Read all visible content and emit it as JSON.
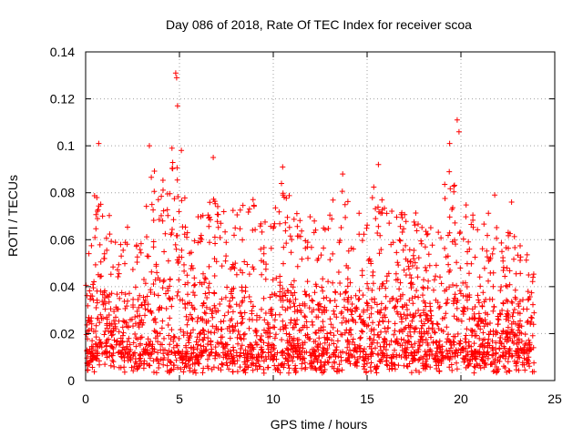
{
  "chart_data": {
    "type": "scatter",
    "title": "Day 086 of 2018, Rate Of TEC Index for receiver scoa",
    "xlabel": "GPS time / hours",
    "ylabel": "ROTI / TECUs",
    "xlim": [
      0,
      25
    ],
    "ylim": [
      0,
      0.14
    ],
    "x_ticks": [
      0,
      5,
      10,
      15,
      20,
      25
    ],
    "x_tick_labels": [
      "0",
      "5",
      "10",
      "15",
      "20",
      "25"
    ],
    "y_ticks": [
      0,
      0.02,
      0.04,
      0.06,
      0.08,
      0.1,
      0.12,
      0.14
    ],
    "y_tick_labels": [
      "0",
      "0.02",
      "0.04",
      "0.06",
      "0.08",
      "0.1",
      "0.12",
      "0.14"
    ],
    "grid": true,
    "marker": "+",
    "marker_color": "#ff0000",
    "x_data_range": [
      0,
      23.9
    ],
    "peak_points": [
      {
        "x": 0.7,
        "y": 0.101
      },
      {
        "x": 3.4,
        "y": 0.1
      },
      {
        "x": 4.6,
        "y": 0.099
      },
      {
        "x": 4.8,
        "y": 0.131
      },
      {
        "x": 4.85,
        "y": 0.129
      },
      {
        "x": 4.9,
        "y": 0.117
      },
      {
        "x": 5.1,
        "y": 0.098
      },
      {
        "x": 6.8,
        "y": 0.095
      },
      {
        "x": 10.5,
        "y": 0.091
      },
      {
        "x": 13.7,
        "y": 0.088
      },
      {
        "x": 15.6,
        "y": 0.092
      },
      {
        "x": 19.4,
        "y": 0.101
      },
      {
        "x": 19.8,
        "y": 0.111
      },
      {
        "x": 19.9,
        "y": 0.106
      },
      {
        "x": 21.8,
        "y": 0.079
      },
      {
        "x": 22.7,
        "y": 0.076
      }
    ],
    "envelope": [
      {
        "x": 0.0,
        "y": 0.046
      },
      {
        "x": 0.3,
        "y": 0.06
      },
      {
        "x": 0.6,
        "y": 0.094
      },
      {
        "x": 0.9,
        "y": 0.084
      },
      {
        "x": 1.3,
        "y": 0.07
      },
      {
        "x": 1.7,
        "y": 0.062
      },
      {
        "x": 2.2,
        "y": 0.068
      },
      {
        "x": 2.6,
        "y": 0.065
      },
      {
        "x": 3.0,
        "y": 0.062
      },
      {
        "x": 3.5,
        "y": 0.092
      },
      {
        "x": 4.0,
        "y": 0.085
      },
      {
        "x": 4.5,
        "y": 0.096
      },
      {
        "x": 5.0,
        "y": 0.094
      },
      {
        "x": 5.5,
        "y": 0.08
      },
      {
        "x": 6.0,
        "y": 0.072
      },
      {
        "x": 6.5,
        "y": 0.082
      },
      {
        "x": 7.0,
        "y": 0.078
      },
      {
        "x": 7.5,
        "y": 0.07
      },
      {
        "x": 8.0,
        "y": 0.085
      },
      {
        "x": 8.5,
        "y": 0.072
      },
      {
        "x": 9.0,
        "y": 0.078
      },
      {
        "x": 9.5,
        "y": 0.07
      },
      {
        "x": 10.0,
        "y": 0.078
      },
      {
        "x": 10.5,
        "y": 0.088
      },
      {
        "x": 11.0,
        "y": 0.075
      },
      {
        "x": 11.5,
        "y": 0.068
      },
      {
        "x": 12.0,
        "y": 0.072
      },
      {
        "x": 12.5,
        "y": 0.066
      },
      {
        "x": 13.0,
        "y": 0.074
      },
      {
        "x": 13.5,
        "y": 0.082
      },
      {
        "x": 14.0,
        "y": 0.084
      },
      {
        "x": 14.5,
        "y": 0.072
      },
      {
        "x": 15.0,
        "y": 0.07
      },
      {
        "x": 15.5,
        "y": 0.088
      },
      {
        "x": 16.0,
        "y": 0.08
      },
      {
        "x": 16.5,
        "y": 0.072
      },
      {
        "x": 17.0,
        "y": 0.082
      },
      {
        "x": 17.5,
        "y": 0.074
      },
      {
        "x": 18.0,
        "y": 0.064
      },
      {
        "x": 18.5,
        "y": 0.068
      },
      {
        "x": 19.0,
        "y": 0.082
      },
      {
        "x": 19.5,
        "y": 0.096
      },
      {
        "x": 20.0,
        "y": 0.09
      },
      {
        "x": 20.5,
        "y": 0.074
      },
      {
        "x": 21.0,
        "y": 0.062
      },
      {
        "x": 21.5,
        "y": 0.074
      },
      {
        "x": 22.0,
        "y": 0.066
      },
      {
        "x": 22.5,
        "y": 0.07
      },
      {
        "x": 23.0,
        "y": 0.062
      },
      {
        "x": 23.5,
        "y": 0.056
      },
      {
        "x": 23.9,
        "y": 0.05
      }
    ],
    "baseline_min": 0.003,
    "baseline_max": 0.012,
    "approx_point_count": 2600
  }
}
